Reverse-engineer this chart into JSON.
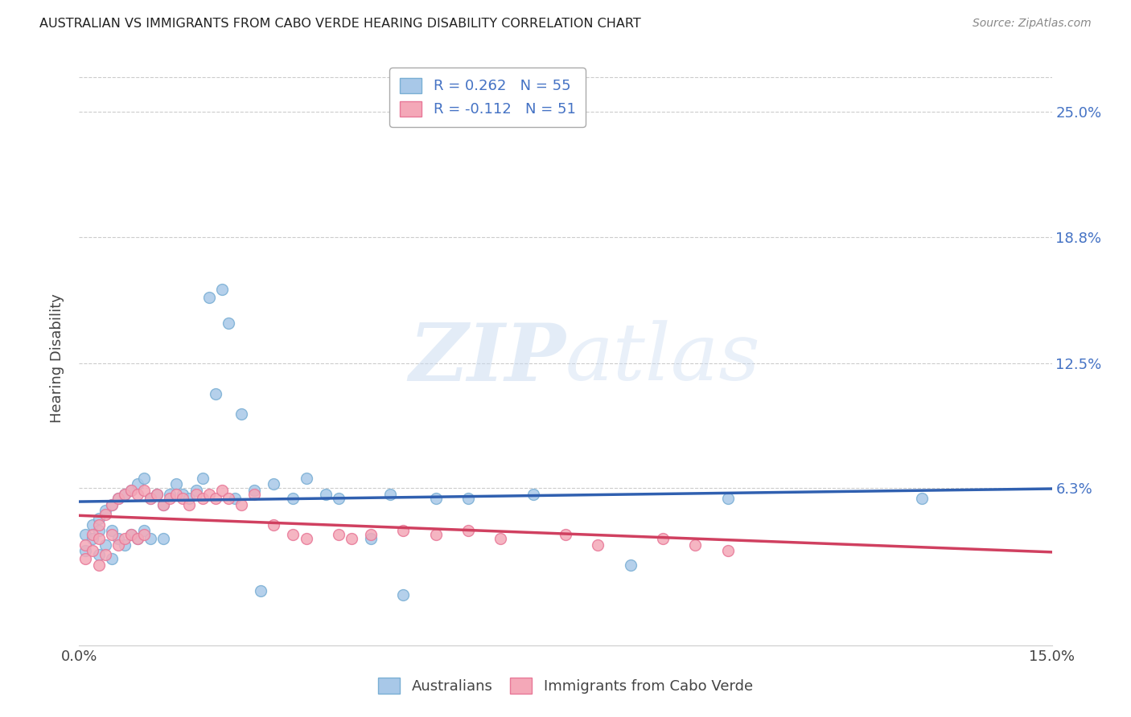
{
  "title": "AUSTRALIAN VS IMMIGRANTS FROM CABO VERDE HEARING DISABILITY CORRELATION CHART",
  "source": "Source: ZipAtlas.com",
  "ylabel": "Hearing Disability",
  "ytick_labels": [
    "25.0%",
    "18.8%",
    "12.5%",
    "6.3%"
  ],
  "ytick_vals": [
    0.25,
    0.188,
    0.125,
    0.063
  ],
  "xlim": [
    0.0,
    0.15
  ],
  "ylim": [
    -0.015,
    0.27
  ],
  "watermark": "ZIPatlas",
  "blue_color": "#a8c8e8",
  "pink_color": "#f4a8b8",
  "blue_edge": "#7aafd4",
  "pink_edge": "#e87898",
  "line_blue": "#3060b0",
  "line_pink": "#d04060",
  "australians_x": [
    0.001,
    0.001,
    0.002,
    0.002,
    0.003,
    0.003,
    0.003,
    0.004,
    0.004,
    0.005,
    0.005,
    0.005,
    0.006,
    0.006,
    0.007,
    0.007,
    0.008,
    0.008,
    0.009,
    0.009,
    0.01,
    0.01,
    0.011,
    0.011,
    0.012,
    0.013,
    0.013,
    0.014,
    0.015,
    0.016,
    0.017,
    0.018,
    0.019,
    0.02,
    0.021,
    0.022,
    0.023,
    0.024,
    0.025,
    0.027,
    0.028,
    0.03,
    0.033,
    0.035,
    0.038,
    0.04,
    0.045,
    0.048,
    0.05,
    0.055,
    0.06,
    0.07,
    0.085,
    0.1,
    0.13
  ],
  "australians_y": [
    0.04,
    0.032,
    0.045,
    0.038,
    0.048,
    0.042,
    0.03,
    0.052,
    0.035,
    0.055,
    0.042,
    0.028,
    0.058,
    0.038,
    0.06,
    0.035,
    0.062,
    0.04,
    0.065,
    0.038,
    0.068,
    0.042,
    0.058,
    0.038,
    0.06,
    0.055,
    0.038,
    0.06,
    0.065,
    0.06,
    0.058,
    0.062,
    0.068,
    0.158,
    0.11,
    0.162,
    0.145,
    0.058,
    0.1,
    0.062,
    0.012,
    0.065,
    0.058,
    0.068,
    0.06,
    0.058,
    0.038,
    0.06,
    0.01,
    0.058,
    0.058,
    0.06,
    0.025,
    0.058,
    0.058
  ],
  "caboverde_x": [
    0.001,
    0.001,
    0.002,
    0.002,
    0.003,
    0.003,
    0.003,
    0.004,
    0.004,
    0.005,
    0.005,
    0.006,
    0.006,
    0.007,
    0.007,
    0.008,
    0.008,
    0.009,
    0.009,
    0.01,
    0.01,
    0.011,
    0.012,
    0.013,
    0.014,
    0.015,
    0.016,
    0.017,
    0.018,
    0.019,
    0.02,
    0.021,
    0.022,
    0.023,
    0.025,
    0.027,
    0.03,
    0.033,
    0.035,
    0.04,
    0.042,
    0.045,
    0.05,
    0.055,
    0.06,
    0.065,
    0.075,
    0.08,
    0.09,
    0.095,
    0.1
  ],
  "caboverde_y": [
    0.035,
    0.028,
    0.04,
    0.032,
    0.045,
    0.038,
    0.025,
    0.05,
    0.03,
    0.055,
    0.04,
    0.058,
    0.035,
    0.06,
    0.038,
    0.062,
    0.04,
    0.06,
    0.038,
    0.062,
    0.04,
    0.058,
    0.06,
    0.055,
    0.058,
    0.06,
    0.058,
    0.055,
    0.06,
    0.058,
    0.06,
    0.058,
    0.062,
    0.058,
    0.055,
    0.06,
    0.045,
    0.04,
    0.038,
    0.04,
    0.038,
    0.04,
    0.042,
    0.04,
    0.042,
    0.038,
    0.04,
    0.035,
    0.038,
    0.035,
    0.032
  ]
}
